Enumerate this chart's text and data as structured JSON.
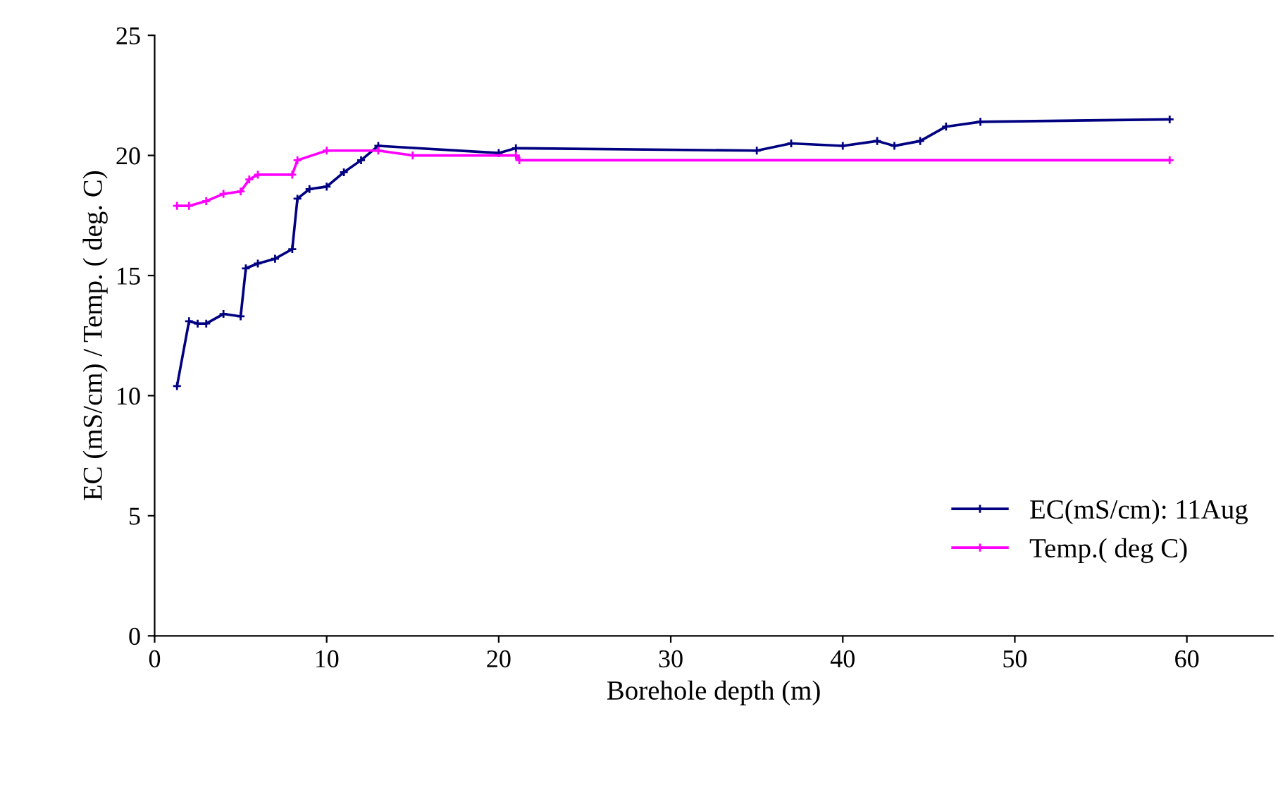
{
  "chart_data": {
    "type": "line",
    "xlabel": "Borehole depth (m)",
    "ylabel": "EC (mS/cm) / Temp. ( deg. C)",
    "xlim": [
      0,
      65
    ],
    "xticks": [
      0,
      10,
      20,
      30,
      40,
      50,
      60
    ],
    "ylim": [
      0,
      25
    ],
    "yticks": [
      0,
      5,
      10,
      15,
      20,
      25
    ],
    "grid": false,
    "legend": "bottom right",
    "marker": "cross",
    "line_style": "solid",
    "series": [
      {
        "name": "EC(mS/cm): 11Aug",
        "color": "#000080",
        "x": [
          1.3,
          2,
          2.5,
          3,
          4,
          5,
          5.3,
          6,
          7,
          8,
          8.3,
          9,
          10,
          11,
          12,
          13,
          20,
          21,
          35,
          37,
          40,
          42,
          43,
          44.5,
          46,
          48,
          59
        ],
        "values": [
          10.4,
          13.1,
          13.0,
          13.0,
          13.4,
          13.3,
          15.3,
          15.5,
          15.7,
          16.1,
          18.2,
          18.6,
          18.7,
          19.3,
          19.8,
          20.4,
          20.1,
          20.3,
          20.2,
          20.5,
          20.4,
          20.6,
          20.4,
          20.6,
          21.2,
          21.4,
          21.5
        ]
      },
      {
        "name": "Temp.( deg C)",
        "color": "#ff00ff",
        "x": [
          1.3,
          2,
          3,
          4,
          5,
          5.5,
          6,
          8,
          8.3,
          10,
          13,
          15,
          21,
          21.2,
          59
        ],
        "values": [
          17.9,
          17.9,
          18.1,
          18.4,
          18.5,
          19.0,
          19.2,
          19.2,
          19.8,
          20.2,
          20.2,
          20.0,
          20.0,
          19.8,
          19.8
        ]
      }
    ]
  }
}
